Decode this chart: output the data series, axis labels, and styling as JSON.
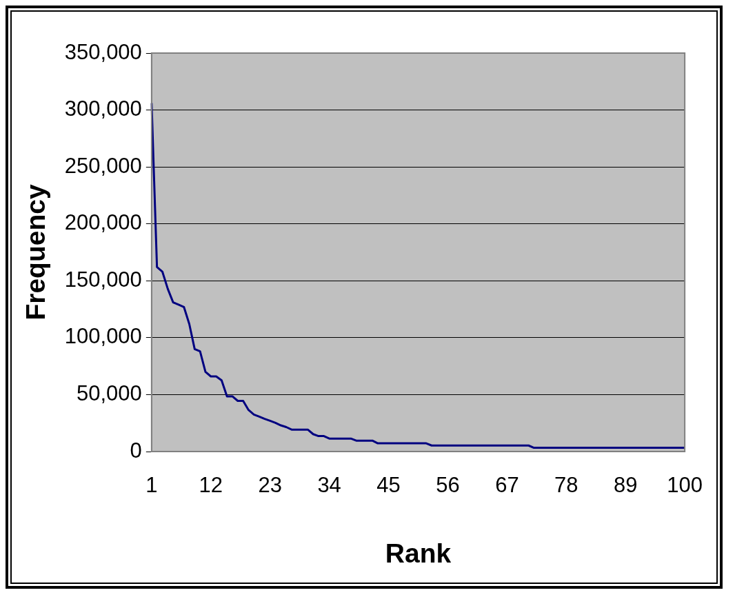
{
  "chart_data": {
    "type": "line",
    "xlabel": "Rank",
    "ylabel": "Frequency",
    "categories": [
      "1",
      null,
      null,
      null,
      null,
      null,
      null,
      null,
      null,
      null,
      null,
      "12",
      null,
      null,
      null,
      null,
      null,
      null,
      null,
      null,
      null,
      null,
      "23",
      null,
      null,
      null,
      null,
      null,
      null,
      null,
      null,
      null,
      null,
      "34",
      null,
      null,
      null,
      null,
      null,
      null,
      null,
      null,
      null,
      null,
      "45",
      null,
      null,
      null,
      null,
      null,
      null,
      null,
      null,
      null,
      null,
      "56",
      null,
      null,
      null,
      null,
      null,
      null,
      null,
      null,
      null,
      null,
      "67",
      null,
      null,
      null,
      null,
      null,
      null,
      null,
      null,
      null,
      null,
      "78",
      null,
      null,
      null,
      null,
      null,
      null,
      null,
      null,
      null,
      null,
      "89",
      null,
      null,
      null,
      null,
      null,
      null,
      null,
      null,
      null,
      null,
      "100"
    ],
    "values": [
      306000,
      162000,
      158000,
      143000,
      131000,
      129000,
      127000,
      112000,
      90000,
      88000,
      70000,
      66000,
      66000,
      62500,
      48500,
      48500,
      44500,
      44500,
      36500,
      32500,
      30700,
      28700,
      27000,
      25200,
      23000,
      21500,
      19300,
      19300,
      19300,
      19300,
      15300,
      13600,
      13600,
      11400,
      11400,
      11400,
      11400,
      11400,
      9600,
      9600,
      9600,
      9600,
      7200,
      7200,
      7200,
      7200,
      7200,
      7200,
      7200,
      7200,
      7200,
      7200,
      5300,
      5300,
      5300,
      5300,
      5300,
      5300,
      5300,
      5300,
      5300,
      5300,
      5300,
      5300,
      5300,
      5300,
      5300,
      5300,
      5300,
      5300,
      5300,
      3300,
      3300,
      3300,
      3300,
      3300,
      3300,
      3300,
      3300,
      3300,
      3300,
      3300,
      3300,
      3300,
      3300,
      3300,
      3300,
      3300,
      3300,
      3300,
      3300,
      3300,
      3300,
      3300,
      3300,
      3300,
      3300,
      3300,
      3300,
      3300
    ],
    "color": "#000080",
    "ylim": [
      0,
      350000
    ],
    "yticks": [
      {
        "value": 0,
        "label": "0"
      },
      {
        "value": 50000,
        "label": "50,000"
      },
      {
        "value": 100000,
        "label": "100,000"
      },
      {
        "value": 150000,
        "label": "150,000"
      },
      {
        "value": 200000,
        "label": "200,000"
      },
      {
        "value": 250000,
        "label": "250,000"
      },
      {
        "value": 300000,
        "label": "300,000"
      },
      {
        "value": 350000,
        "label": "350,000"
      }
    ],
    "grid": "y"
  }
}
